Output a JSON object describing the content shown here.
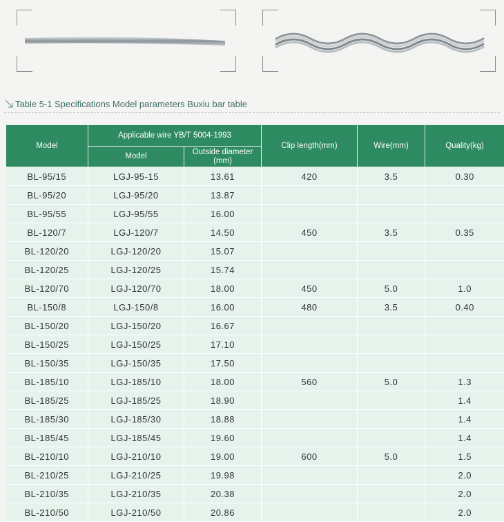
{
  "caption": "Table 5-1 Specifications Model parameters Buxiu bar table",
  "header": {
    "model": "Model",
    "applicable_wire": "Applicable wire  YB/T 5004-1993",
    "wire_model": "Model",
    "outside_diameter": "Outside diameter (mm)",
    "clip_length": "Clip length(mm)",
    "wire": "Wire(mm)",
    "quality": "Quality(kg)"
  },
  "rows": [
    {
      "model": "BL-95/15",
      "wire_model": "LGJ-95-15",
      "diameter": "13.61",
      "clip": "420",
      "wire": "3.5",
      "quality": "0.30"
    },
    {
      "model": "BL-95/20",
      "wire_model": "LGJ-95/20",
      "diameter": "13.87",
      "clip": "",
      "wire": "",
      "quality": ""
    },
    {
      "model": "BL-95/55",
      "wire_model": "LGJ-95/55",
      "diameter": "16.00",
      "clip": "",
      "wire": "",
      "quality": ""
    },
    {
      "model": "BL-120/7",
      "wire_model": "LGJ-120/7",
      "diameter": "14.50",
      "clip": "450",
      "wire": "3.5",
      "quality": "0.35"
    },
    {
      "model": "BL-120/20",
      "wire_model": "LGJ-120/20",
      "diameter": "15.07",
      "clip": "",
      "wire": "",
      "quality": ""
    },
    {
      "model": "BL-120/25",
      "wire_model": "LGJ-120/25",
      "diameter": "15.74",
      "clip": "",
      "wire": "",
      "quality": ""
    },
    {
      "model": "BL-120/70",
      "wire_model": "LGJ-120/70",
      "diameter": "18.00",
      "clip": "450",
      "wire": "5.0",
      "quality": "1.0"
    },
    {
      "model": "BL-150/8",
      "wire_model": "LGJ-150/8",
      "diameter": "16.00",
      "clip": "480",
      "wire": "3.5",
      "quality": "0.40"
    },
    {
      "model": "BL-150/20",
      "wire_model": "LGJ-150/20",
      "diameter": "16.67",
      "clip": "",
      "wire": "",
      "quality": ""
    },
    {
      "model": "BL-150/25",
      "wire_model": "LGJ-150/25",
      "diameter": "17.10",
      "clip": "",
      "wire": "",
      "quality": ""
    },
    {
      "model": "BL-150/35",
      "wire_model": "LGJ-150/35",
      "diameter": "17.50",
      "clip": "",
      "wire": "",
      "quality": ""
    },
    {
      "model": "BL-185/10",
      "wire_model": "LGJ-185/10",
      "diameter": "18.00",
      "clip": "560",
      "wire": "5.0",
      "quality": "1.3"
    },
    {
      "model": "BL-185/25",
      "wire_model": "LGJ-185/25",
      "diameter": "18.90",
      "clip": "",
      "wire": "",
      "quality": "1.4"
    },
    {
      "model": "BL-185/30",
      "wire_model": "LGJ-185/30",
      "diameter": "18.88",
      "clip": "",
      "wire": "",
      "quality": "1.4"
    },
    {
      "model": "BL-185/45",
      "wire_model": "LGJ-185/45",
      "diameter": "19.60",
      "clip": "",
      "wire": "",
      "quality": "1.4"
    },
    {
      "model": "BL-210/10",
      "wire_model": "LGJ-210/10",
      "diameter": "19.00",
      "clip": "600",
      "wire": "5.0",
      "quality": "1.5"
    },
    {
      "model": "BL-210/25",
      "wire_model": "LGJ-210/25",
      "diameter": "19.98",
      "clip": "",
      "wire": "",
      "quality": "2.0"
    },
    {
      "model": "BL-210/35",
      "wire_model": "LGJ-210/35",
      "diameter": "20.38",
      "clip": "",
      "wire": "",
      "quality": "2.0"
    },
    {
      "model": "BL-210/50",
      "wire_model": "LGJ-210/50",
      "diameter": "20.86",
      "clip": "",
      "wire": "",
      "quality": "2.0"
    }
  ],
  "colors": {
    "header": "#2e8a60",
    "row": "#e6f2ec",
    "caption": "#3f6e68"
  },
  "icons": {
    "caption": "diagonal-arrow-icon",
    "left_image": "straight-armor-rod-image",
    "right_image": "spiral-armor-rod-image"
  }
}
